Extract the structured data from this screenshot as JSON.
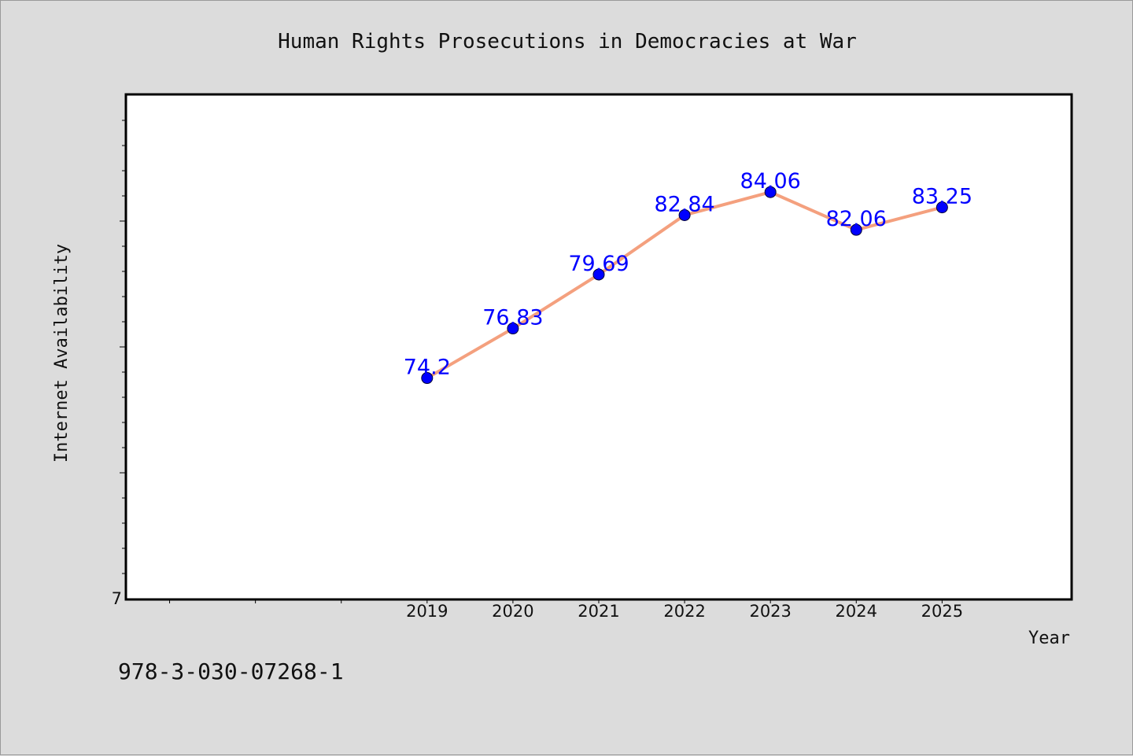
{
  "footer_code": "978-3-030-07268-1",
  "chart_data": {
    "type": "line",
    "title": "Human Rights Prosecutions in Democracies at War",
    "xlabel": "Year",
    "ylabel": "Internet Availability",
    "x": [
      2019,
      2020,
      2021,
      2022,
      2023,
      2024,
      2025
    ],
    "x_tick_labels": [
      "2019",
      "2020",
      "2021",
      "2022",
      "2023",
      "2024",
      "2025"
    ],
    "xlim": [
      2015.5,
      2026.5
    ],
    "y_tick_labels": [
      "7"
    ],
    "ylim": [
      62.5,
      89.2
    ],
    "series": [
      {
        "values": [
          74.2,
          76.83,
          79.69,
          82.84,
          84.06,
          82.06,
          83.25
        ],
        "data_labels": [
          "74.2",
          "76.83",
          "79.69",
          "82.84",
          "84.06",
          "82.06",
          "83.25"
        ]
      }
    ],
    "grid": false,
    "colors": {
      "line": "#f4a07e",
      "marker": "#0000ff",
      "label": "#0000ff",
      "plot_background": "#ffffff",
      "page_background": "#dcdcdc"
    }
  }
}
